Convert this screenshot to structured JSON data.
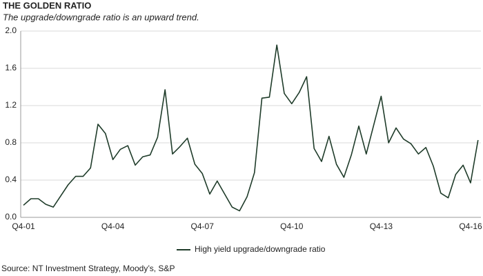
{
  "chart_data": {
    "type": "line",
    "title": "THE GOLDEN RATIO",
    "subtitle": "The upgrade/downgrade  ratio is an upward trend.",
    "source": "Source: NT Investment Strategy, Moody’s, S&P",
    "categories": [
      "Q4-01",
      null,
      null,
      null,
      null,
      null,
      null,
      null,
      null,
      null,
      null,
      null,
      "Q4-04",
      null,
      null,
      null,
      null,
      null,
      null,
      null,
      null,
      null,
      null,
      null,
      "Q4-07",
      null,
      null,
      null,
      null,
      null,
      null,
      null,
      null,
      null,
      null,
      null,
      "Q4-10",
      null,
      null,
      null,
      null,
      null,
      null,
      null,
      null,
      null,
      null,
      null,
      "Q4-13",
      null,
      null,
      null,
      null,
      null,
      null,
      null,
      null,
      null,
      null,
      null,
      "Q4-16",
      null
    ],
    "series": [
      {
        "name": "High yield upgrade/downgrade ratio",
        "color": "#1e3b29",
        "values": [
          0.13,
          0.2,
          0.2,
          0.14,
          0.11,
          0.23,
          0.35,
          0.44,
          0.44,
          0.53,
          1.0,
          0.9,
          0.62,
          0.73,
          0.77,
          0.56,
          0.65,
          0.67,
          0.86,
          1.37,
          0.68,
          0.76,
          0.85,
          0.57,
          0.47,
          0.25,
          0.39,
          0.25,
          0.11,
          0.07,
          0.22,
          0.48,
          1.28,
          1.29,
          1.85,
          1.33,
          1.22,
          1.34,
          1.51,
          0.74,
          0.6,
          0.87,
          0.57,
          0.43,
          0.67,
          0.98,
          0.68,
          0.99,
          1.3,
          0.8,
          0.96,
          0.84,
          0.79,
          0.68,
          0.75,
          0.55,
          0.26,
          0.21,
          0.46,
          0.56,
          0.37,
          0.83
        ]
      }
    ],
    "ylim": [
      0,
      2
    ],
    "yticks": [
      {
        "value": 0,
        "label": "0.0"
      },
      0.4,
      0.8,
      1.2,
      1.6,
      {
        "value": 2,
        "label": "2.0"
      }
    ],
    "grid": true,
    "legend": "bottom"
  }
}
